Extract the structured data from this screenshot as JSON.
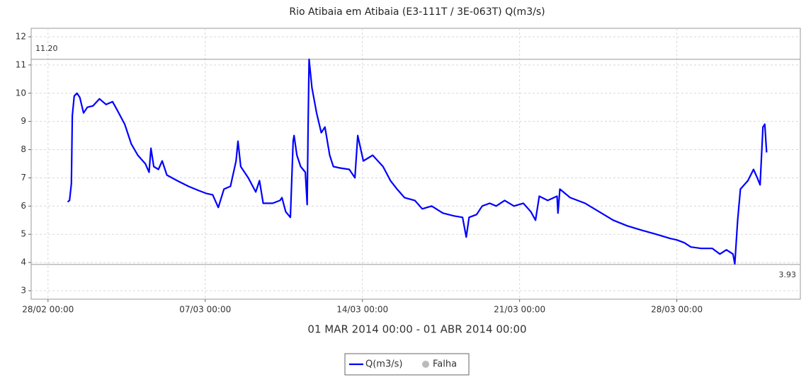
{
  "chart_data": {
    "type": "line",
    "title": "Rio Atibaia em Atibaia (E3-111T / 3E-063T) Q(m3/s)",
    "subtitle": "01 MAR 2014 00:00 - 01 ABR 2014 00:00",
    "x": [
      "28/02 21:00",
      "28/02 23:00",
      "01/03 01:00",
      "01/03 02:00",
      "01/03 04:00",
      "01/03 07:00",
      "01/03 10:00",
      "01/03 14:00",
      "01/03 18:00",
      "02/03 00:00",
      "02/03 07:00",
      "02/03 14:00",
      "02/03 21:00",
      "03/03 02:00",
      "03/03 10:00",
      "03/03 17:00",
      "04/03 00:00",
      "04/03 08:00",
      "04/03 12:00",
      "04/03 14:00",
      "04/03 17:00",
      "04/03 22:00",
      "05/03 02:00",
      "05/03 07:00",
      "05/03 18:00",
      "06/03 06:00",
      "06/03 17:00",
      "07/03 01:00",
      "07/03 08:00",
      "07/03 14:00",
      "07/03 20:00",
      "08/03 03:00",
      "08/03 09:00",
      "08/03 11:00",
      "08/03 14:00",
      "08/03 22:00",
      "09/03 06:00",
      "09/03 10:00",
      "09/03 14:00",
      "10/03 00:00",
      "10/03 08:00",
      "10/03 10:00",
      "10/03 14:00",
      "10/03 19:00",
      "10/03 22:00",
      "10/03 23:00",
      "11/03 02:00",
      "11/03 06:00",
      "11/03 11:00",
      "11/03 13:00",
      "11/03 14:00",
      "11/03 15:00",
      "11/03 18:00",
      "11/03 23:00",
      "12/03 04:00",
      "12/03 08:00",
      "12/03 13:00",
      "12/03 17:00",
      "13/03 00:00",
      "13/03 10:00",
      "13/03 16:00",
      "13/03 19:00",
      "14/03 01:00",
      "14/03 11:00",
      "14/03 22:00",
      "15/03 06:00",
      "15/03 13:00",
      "15/03 21:00",
      "16/03 08:00",
      "16/03 16:00",
      "17/03 02:00",
      "17/03 14:00",
      "18/03 02:00",
      "18/03 11:00",
      "18/03 15:00",
      "18/03 18:00",
      "19/03 02:00",
      "19/03 08:00",
      "19/03 16:00",
      "19/03 23:00",
      "20/03 08:00",
      "20/03 18:00",
      "21/03 04:00",
      "21/03 12:00",
      "21/03 17:00",
      "21/03 21:00",
      "22/03 06:00",
      "22/03 16:00",
      "22/03 17:00",
      "22/03 19:00",
      "23/03 06:00",
      "23/03 22:00",
      "24/03 13:00",
      "25/03 04:00",
      "25/03 19:00",
      "26/03 10:00",
      "27/03 02:00",
      "27/03 17:00",
      "28/03 00:00",
      "28/03 08:00",
      "28/03 15:00",
      "29/03 02:00",
      "29/03 14:00",
      "29/03 22:00",
      "30/03 05:00",
      "30/03 12:00",
      "30/03 14:00",
      "30/03 17:00",
      "30/03 20:00",
      "31/03 04:00",
      "31/03 10:00",
      "31/03 14:00",
      "31/03 17:00",
      "31/03 20:00",
      "31/03 22:00",
      "01/04 00:00"
    ],
    "series": [
      {
        "name": "Q(m3/s)",
        "color": "#0000ff",
        "values": [
          6.15,
          6.2,
          6.8,
          9.2,
          9.9,
          10.0,
          9.85,
          9.3,
          9.5,
          9.55,
          9.8,
          9.6,
          9.7,
          9.4,
          8.9,
          8.2,
          7.8,
          7.5,
          7.2,
          8.05,
          7.4,
          7.3,
          7.6,
          7.1,
          6.9,
          6.7,
          6.55,
          6.45,
          6.4,
          5.95,
          6.6,
          6.7,
          7.6,
          8.3,
          7.4,
          7.0,
          6.5,
          6.9,
          6.1,
          6.1,
          6.2,
          6.3,
          5.8,
          5.6,
          8.3,
          8.5,
          7.8,
          7.4,
          7.2,
          6.05,
          9.0,
          11.2,
          10.2,
          9.3,
          8.6,
          8.8,
          7.8,
          7.4,
          7.35,
          7.3,
          7.0,
          8.5,
          7.6,
          7.8,
          7.4,
          6.9,
          6.6,
          6.3,
          6.2,
          5.9,
          6.0,
          5.75,
          5.65,
          5.6,
          4.9,
          5.6,
          5.7,
          6.0,
          6.1,
          6.0,
          6.2,
          6.0,
          6.1,
          5.8,
          5.5,
          6.35,
          6.2,
          6.35,
          5.75,
          6.6,
          6.3,
          6.1,
          5.8,
          5.5,
          5.3,
          5.15,
          5.0,
          4.85,
          4.8,
          4.7,
          4.55,
          4.5,
          4.5,
          4.3,
          4.45,
          4.3,
          3.95,
          5.5,
          6.6,
          6.9,
          7.3,
          7.0,
          6.75,
          8.8,
          8.9,
          7.9
        ]
      }
    ],
    "failure_legend": {
      "name": "Falha",
      "color": "#bbbbbb"
    },
    "markers": [
      {
        "value": 11.2,
        "label": "11.20"
      },
      {
        "value": 3.93,
        "label": "3.93"
      }
    ],
    "xlim": [
      "27/02 06:00",
      "02/04 12:00"
    ],
    "xticks": [
      "28/02 00:00",
      "07/03 00:00",
      "14/03 00:00",
      "21/03 00:00",
      "28/03 00:00"
    ],
    "ylim": [
      2.7,
      12.3
    ],
    "yticks": [
      3,
      4,
      5,
      6,
      7,
      8,
      9,
      10,
      11,
      12
    ],
    "grid": true
  }
}
